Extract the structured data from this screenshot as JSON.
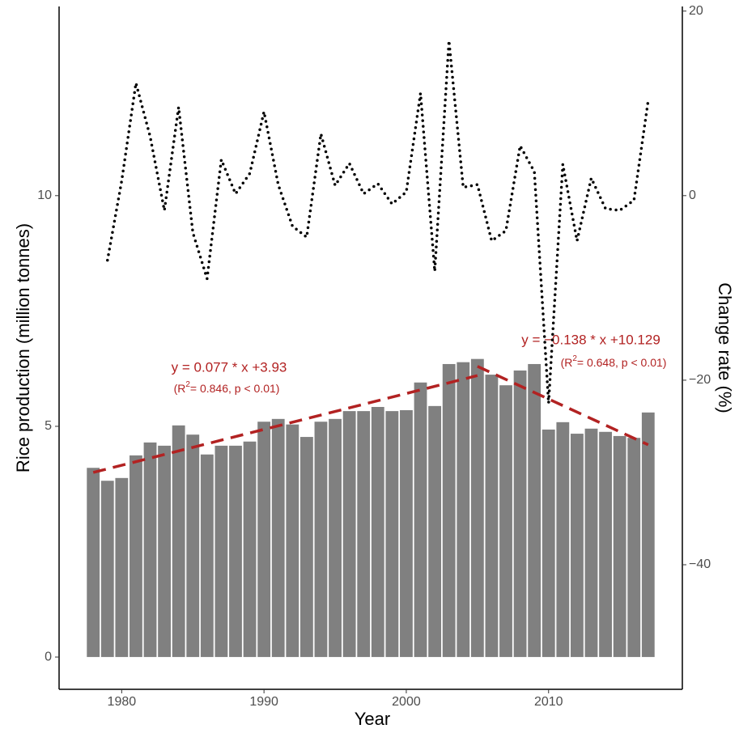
{
  "chart_data": {
    "type": "bar",
    "x_label": "Year",
    "y_label": "Rice production (million tonnes)",
    "y2_label": "Change rate (%)",
    "x": [
      1978,
      1979,
      1980,
      1981,
      1982,
      1983,
      1984,
      1985,
      1986,
      1987,
      1988,
      1989,
      1990,
      1991,
      1992,
      1993,
      1994,
      1995,
      1996,
      1997,
      1998,
      1999,
      2000,
      2001,
      2002,
      2003,
      2004,
      2005,
      2006,
      2007,
      2008,
      2009,
      2010,
      2011,
      2012,
      2013,
      2014,
      2015,
      2016,
      2017
    ],
    "series": [
      {
        "type": "bar",
        "axis": "y",
        "color": "#808080",
        "values": [
          4.1,
          3.82,
          3.88,
          4.37,
          4.65,
          4.58,
          5.02,
          4.82,
          4.39,
          4.58,
          4.58,
          4.67,
          5.1,
          5.16,
          5.04,
          4.77,
          5.1,
          5.16,
          5.33,
          5.33,
          5.42,
          5.33,
          5.35,
          5.95,
          5.44,
          6.35,
          6.39,
          6.46,
          6.12,
          5.89,
          6.21,
          6.35,
          4.93,
          5.09,
          4.84,
          4.95,
          4.88,
          4.79,
          4.75,
          5.3
        ]
      },
      {
        "type": "line",
        "axis": "y2",
        "color": "#000000",
        "dash": "dotted",
        "values": [
          null,
          -7.0,
          1.6,
          12.2,
          6.4,
          -1.6,
          9.6,
          -4.0,
          -9.0,
          3.9,
          0.2,
          2.4,
          9.1,
          1.2,
          -3.3,
          -4.5,
          6.7,
          1.1,
          3.5,
          0.2,
          1.3,
          -0.9,
          0.4,
          11.1,
          -8.2,
          16.8,
          0.9,
          1.2,
          -4.9,
          -3.8,
          5.4,
          2.6,
          -22.5,
          3.4,
          -4.9,
          1.9,
          -1.4,
          -1.6,
          -0.5,
          10.3
        ]
      }
    ],
    "trend_lines": [
      {
        "color": "#b22222",
        "x": [
          1978,
          2005
        ],
        "values": [
          4.0,
          6.1
        ]
      },
      {
        "color": "#b22222",
        "x": [
          2005,
          2017
        ],
        "values": [
          6.3,
          4.6
        ]
      }
    ],
    "annotations": [
      {
        "text": "y = 0.077 * x +3.93",
        "note": [
          "(R",
          "2",
          "= 0.846,  p < 0.01)"
        ]
      },
      {
        "text": "y = −0.138 * x +10.129",
        "note": [
          "(R",
          "2",
          "= 0.648,  p < 0.01)"
        ]
      }
    ],
    "xlim": [
      1975.6,
      2019.4
    ],
    "xticks": [
      1980,
      1990,
      2000,
      2010
    ],
    "ylim": [
      -0.7,
      14.1
    ],
    "yticks": [
      0,
      5,
      10
    ],
    "y2lim": [
      -53.5,
      20.5
    ],
    "y2ticks": [
      {
        "value": -40,
        "label": "−40"
      },
      {
        "value": -20,
        "label": "−20"
      },
      0,
      20
    ]
  }
}
